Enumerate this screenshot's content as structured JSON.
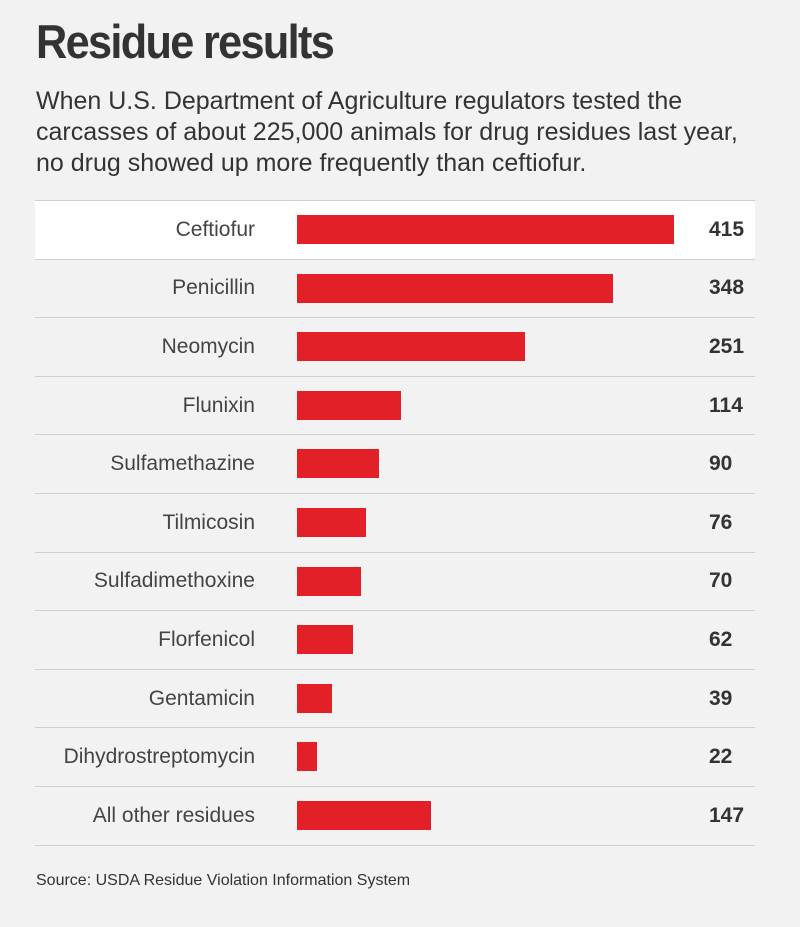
{
  "title": "Residue results",
  "subtitle": "When U.S. Department of Agriculture regulators tested the carcasses of about 225,000 animals for drug residues last year, no drug showed up more frequently than ceftiofur.",
  "source": "Source: USDA Residue Violation Information System",
  "colors": {
    "bar": "#e32028",
    "background": "#f2f2f2",
    "highlight_row": "#ffffff"
  },
  "chart_data": {
    "type": "bar",
    "orientation": "horizontal",
    "title": "Residue results",
    "categories": [
      "Ceftiofur",
      "Penicillin",
      "Neomycin",
      "Flunixin",
      "Sulfamethazine",
      "Tilmicosin",
      "Sulfadimethoxine",
      "Florfenicol",
      "Gentamicin",
      "Dihydrostreptomycin",
      "All other residues"
    ],
    "values": [
      415,
      348,
      251,
      114,
      90,
      76,
      70,
      62,
      39,
      22,
      147
    ],
    "highlighted_category": "Ceftiofur",
    "xlim": [
      0,
      415
    ],
    "grid": false,
    "data_labels": true
  }
}
